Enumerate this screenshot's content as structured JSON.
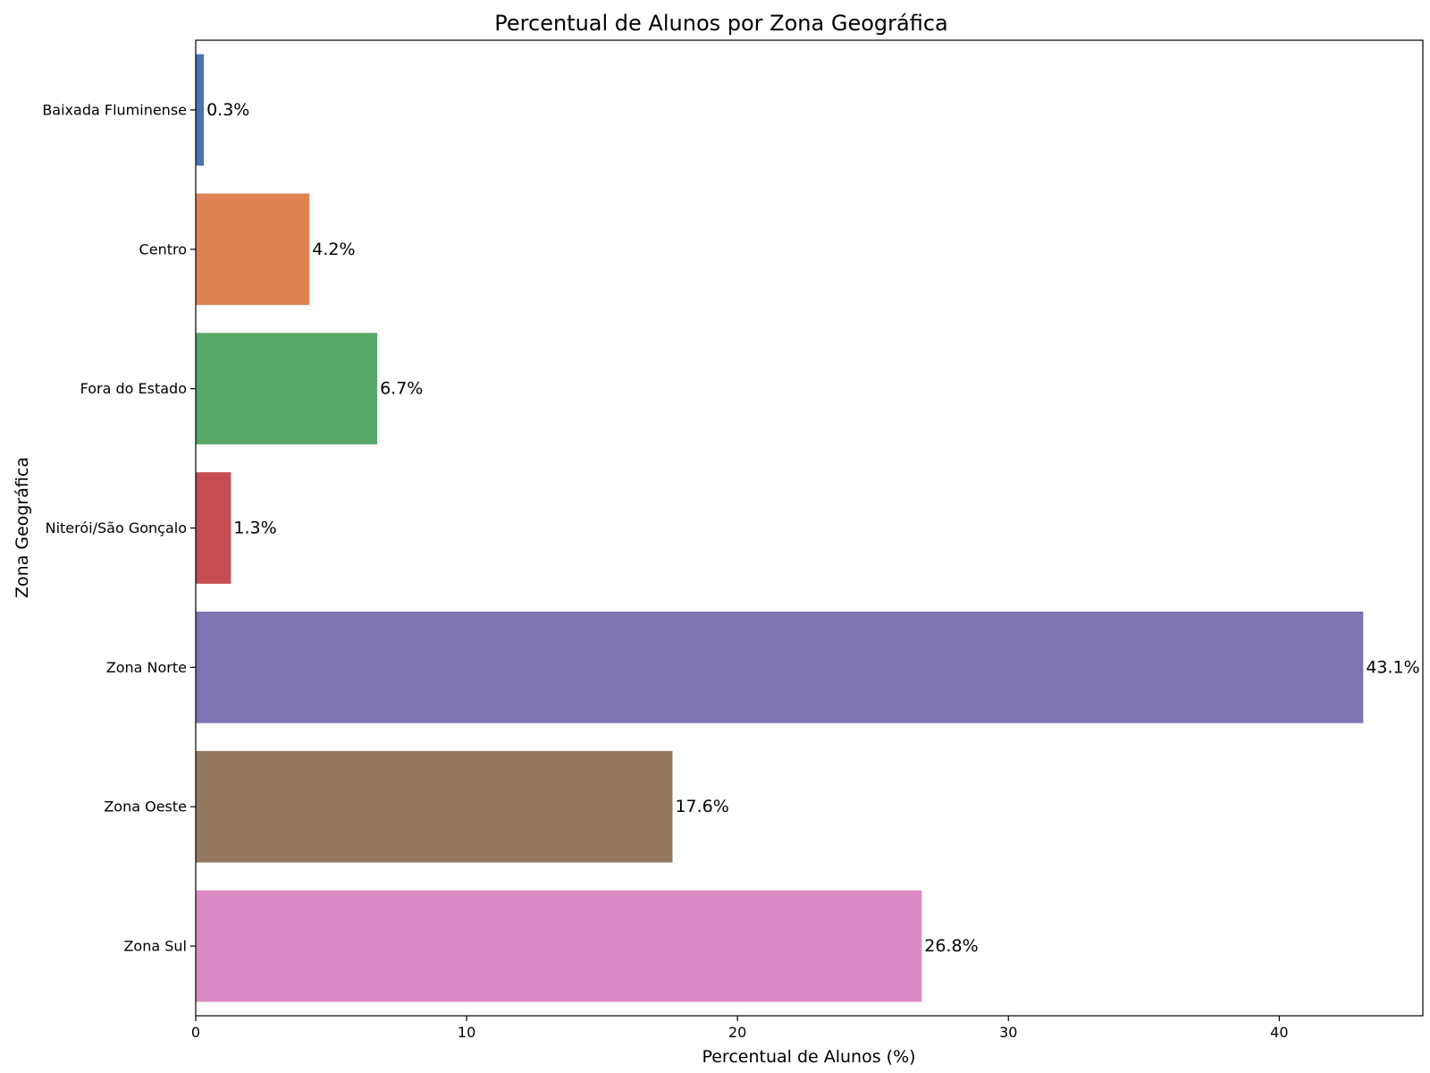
{
  "chart_data": {
    "type": "bar",
    "orientation": "horizontal",
    "title": "Percentual de Alunos por Zona Geográfica",
    "xlabel": "Percentual de Alunos (%)",
    "ylabel": "Zona Geográfica",
    "xlim": [
      0,
      45.3
    ],
    "xticks": [
      0,
      10,
      20,
      30,
      40
    ],
    "grid": false,
    "legend": "none",
    "categories": [
      "Baixada Fluminense",
      "Centro",
      "Fora do Estado",
      "Niterói/São Gonçalo",
      "Zona Norte",
      "Zona Oeste",
      "Zona Sul"
    ],
    "values": [
      0.3,
      4.2,
      6.7,
      1.3,
      43.1,
      17.6,
      26.8
    ],
    "data_labels": [
      "0.3%",
      "4.2%",
      "6.7%",
      "1.3%",
      "43.1%",
      "17.6%",
      "26.8%"
    ],
    "colors": [
      "#4c72b0",
      "#dd8452",
      "#55a868",
      "#c44e52",
      "#8172b3",
      "#937860",
      "#da8bc3"
    ]
  }
}
